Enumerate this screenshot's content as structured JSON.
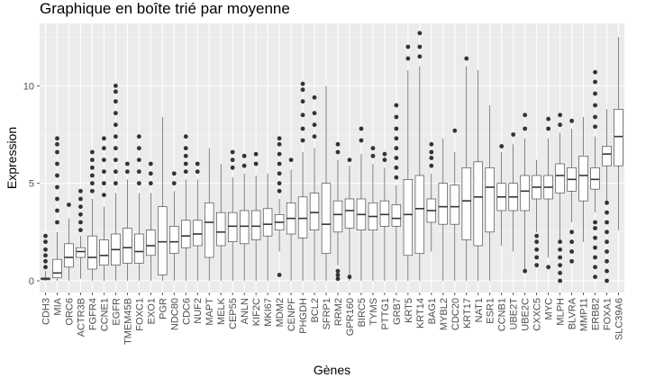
{
  "chart_data": {
    "type": "boxplot",
    "title": "Graphique en boîte trié par moyenne",
    "xlabel": "Gènes",
    "ylabel": "Expression",
    "ylim": [
      -0.6,
      13.2
    ],
    "yticks": [
      0,
      5,
      10
    ],
    "grid": true,
    "colors": {
      "panel": "#EBEBEB",
      "grid_major": "#FFFFFF",
      "box_fill": "#FFFFFF",
      "box_line": "#333333",
      "outlier": "#333333"
    },
    "categories": [
      "CDH3",
      "MIA",
      "ORC6",
      "ACTR3B",
      "FGFR4",
      "CCNE1",
      "EGFR",
      "TMEM45B",
      "FOXC1",
      "EXO1",
      "PGR",
      "NDC80",
      "CDC6",
      "NUF2",
      "MAPT",
      "MELK",
      "CEP55",
      "ANLN",
      "KIF2C",
      "MKI67",
      "MDM2",
      "CENPF",
      "PHGDH",
      "BCL2",
      "SFRP1",
      "RRM2",
      "GPR160",
      "BIRC5",
      "TYMS",
      "PTTG1",
      "GRB7",
      "KRT5",
      "KRT14",
      "BAG1",
      "MYBL2",
      "CDC20",
      "KRT17",
      "NAT1",
      "ESR1",
      "CCNB1",
      "UBE2T",
      "UBE2C",
      "CXXC5",
      "MYC",
      "MLPH",
      "BLVRA",
      "MMP11",
      "ERBB2",
      "FOXA1",
      "SLC39A6"
    ],
    "boxes": [
      {
        "min": 0.0,
        "q1": 0.05,
        "median": 0.1,
        "q3": 0.15,
        "max": 0.5,
        "outliers": [
          0.7,
          1.0,
          1.3,
          1.6,
          2.0,
          2.3
        ]
      },
      {
        "min": 0.0,
        "q1": 0.15,
        "median": 0.4,
        "q3": 1.1,
        "max": 2.5,
        "outliers": [
          3.0,
          3.6,
          4.2,
          4.8,
          5.4,
          6.0,
          6.6,
          7.0,
          7.3
        ]
      },
      {
        "min": 0.0,
        "q1": 0.7,
        "median": 1.2,
        "q3": 1.9,
        "max": 3.2,
        "outliers": [
          3.9
        ]
      },
      {
        "min": 0.1,
        "q1": 1.2,
        "median": 1.5,
        "q3": 1.7,
        "max": 2.3,
        "outliers": [
          2.6,
          3.0,
          3.4,
          3.8,
          4.2,
          4.6
        ]
      },
      {
        "min": 0.0,
        "q1": 0.6,
        "median": 1.2,
        "q3": 2.3,
        "max": 4.2,
        "outliers": [
          4.6,
          5.0,
          5.4,
          5.8,
          6.2,
          6.6
        ]
      },
      {
        "min": 0.0,
        "q1": 0.8,
        "median": 1.3,
        "q3": 2.1,
        "max": 3.8,
        "outliers": [
          4.4,
          5.0,
          5.6,
          6.2,
          6.8,
          7.3
        ]
      },
      {
        "min": 0.0,
        "q1": 0.8,
        "median": 1.6,
        "q3": 2.4,
        "max": 4.5,
        "outliers": [
          5.0,
          5.6,
          6.2,
          6.8,
          7.4,
          8.0,
          8.6,
          9.2,
          9.7,
          10.0
        ]
      },
      {
        "min": 0.0,
        "q1": 0.9,
        "median": 1.7,
        "q3": 2.7,
        "max": 5.2,
        "outliers": [
          5.6,
          6.0
        ]
      },
      {
        "min": 0.0,
        "q1": 0.9,
        "median": 1.5,
        "q3": 2.4,
        "max": 4.5,
        "outliers": [
          5.0,
          5.6,
          6.2,
          6.8,
          7.4
        ]
      },
      {
        "min": 0.0,
        "q1": 1.3,
        "median": 1.8,
        "q3": 2.6,
        "max": 4.5,
        "outliers": [
          5.0,
          5.5,
          6.0
        ]
      },
      {
        "min": 0.0,
        "q1": 0.3,
        "median": 2.0,
        "q3": 3.8,
        "max": 8.4,
        "outliers": []
      },
      {
        "min": 0.0,
        "q1": 1.4,
        "median": 2.0,
        "q3": 2.8,
        "max": 4.6,
        "outliers": [
          5.0,
          5.5
        ]
      },
      {
        "min": 0.0,
        "q1": 1.7,
        "median": 2.3,
        "q3": 3.1,
        "max": 5.2,
        "outliers": [
          5.6,
          6.0,
          6.4,
          6.8,
          7.4
        ]
      },
      {
        "min": 0.0,
        "q1": 1.8,
        "median": 2.4,
        "q3": 3.1,
        "max": 5.2,
        "outliers": [
          5.6,
          6.0
        ]
      },
      {
        "min": 0.0,
        "q1": 1.2,
        "median": 3.0,
        "q3": 4.0,
        "max": 6.8,
        "outliers": []
      },
      {
        "min": 0.0,
        "q1": 1.8,
        "median": 2.5,
        "q3": 3.5,
        "max": 6.0,
        "outliers": []
      },
      {
        "min": 0.0,
        "q1": 2.0,
        "median": 2.8,
        "q3": 3.5,
        "max": 5.3,
        "outliers": [
          5.8,
          6.2,
          6.6
        ]
      },
      {
        "min": 0.0,
        "q1": 1.9,
        "median": 2.8,
        "q3": 3.6,
        "max": 5.5,
        "outliers": [
          5.9,
          6.4
        ]
      },
      {
        "min": 0.0,
        "q1": 2.1,
        "median": 2.8,
        "q3": 3.6,
        "max": 5.4,
        "outliers": [
          6.0,
          6.5
        ]
      },
      {
        "min": 0.0,
        "q1": 2.3,
        "median": 2.9,
        "q3": 3.7,
        "max": 5.5,
        "outliers": []
      },
      {
        "min": 1.5,
        "q1": 2.6,
        "median": 3.0,
        "q3": 3.4,
        "max": 4.2,
        "outliers": [
          0.3,
          4.6,
          5.0,
          5.5,
          6.0,
          6.5,
          7.0,
          7.3
        ]
      },
      {
        "min": 0.0,
        "q1": 2.4,
        "median": 3.2,
        "q3": 4.0,
        "max": 5.7,
        "outliers": [
          6.2
        ]
      },
      {
        "min": 0.0,
        "q1": 2.2,
        "median": 3.2,
        "q3": 4.3,
        "max": 6.6,
        "outliers": [
          7.2,
          7.8,
          8.5,
          9.2,
          9.8,
          10.1
        ]
      },
      {
        "min": 0.0,
        "q1": 2.6,
        "median": 3.5,
        "q3": 4.5,
        "max": 6.8,
        "outliers": [
          7.4,
          8.0,
          8.6,
          9.4
        ]
      },
      {
        "min": 0.0,
        "q1": 1.4,
        "median": 2.9,
        "q3": 5.0,
        "max": 10.0,
        "outliers": []
      },
      {
        "min": 0.8,
        "q1": 2.5,
        "median": 3.4,
        "q3": 4.1,
        "max": 6.2,
        "outliers": [
          0.1,
          0.3,
          0.5,
          6.6,
          7.0
        ]
      },
      {
        "min": 0.0,
        "q1": 2.7,
        "median": 3.6,
        "q3": 4.2,
        "max": 5.9,
        "outliers": [
          0.2,
          6.2
        ]
      },
      {
        "min": 0.0,
        "q1": 2.6,
        "median": 3.4,
        "q3": 4.2,
        "max": 6.5,
        "outliers": [
          7.2,
          7.8
        ]
      },
      {
        "min": 0.0,
        "q1": 2.6,
        "median": 3.3,
        "q3": 4.0,
        "max": 6.0,
        "outliers": [
          6.4,
          6.8
        ]
      },
      {
        "min": 0.0,
        "q1": 2.8,
        "median": 3.4,
        "q3": 4.1,
        "max": 5.8,
        "outliers": [
          6.2,
          6.5
        ]
      },
      {
        "min": 0.0,
        "q1": 2.8,
        "median": 3.2,
        "q3": 3.9,
        "max": 4.9,
        "outliers": [
          5.3,
          5.8,
          6.3,
          6.8,
          7.3,
          7.8,
          8.4,
          9.0
        ]
      },
      {
        "min": 0.0,
        "q1": 1.3,
        "median": 3.4,
        "q3": 5.2,
        "max": 10.8,
        "outliers": [
          11.4,
          12.0
        ]
      },
      {
        "min": 0.0,
        "q1": 1.4,
        "median": 3.7,
        "q3": 5.4,
        "max": 11.0,
        "outliers": [
          11.5,
          12.0,
          12.7
        ]
      },
      {
        "min": 1.5,
        "q1": 3.0,
        "median": 3.6,
        "q3": 4.2,
        "max": 5.5,
        "outliers": [
          5.9,
          6.3,
          6.6,
          7.0
        ]
      },
      {
        "min": 0.0,
        "q1": 2.9,
        "median": 3.8,
        "q3": 5.0,
        "max": 7.3,
        "outliers": []
      },
      {
        "min": 0.0,
        "q1": 2.9,
        "median": 3.8,
        "q3": 4.9,
        "max": 6.6,
        "outliers": [
          7.7
        ]
      },
      {
        "min": 0.0,
        "q1": 2.1,
        "median": 4.1,
        "q3": 5.8,
        "max": 11.0,
        "outliers": [
          11.4
        ]
      },
      {
        "min": 0.0,
        "q1": 1.8,
        "median": 4.3,
        "q3": 6.1,
        "max": 10.8,
        "outliers": []
      },
      {
        "min": 0.0,
        "q1": 2.5,
        "median": 4.8,
        "q3": 5.8,
        "max": 9.0,
        "outliers": []
      },
      {
        "min": 1.8,
        "q1": 3.6,
        "median": 4.3,
        "q3": 5.0,
        "max": 6.6,
        "outliers": [
          6.9
        ]
      },
      {
        "min": 1.5,
        "q1": 3.6,
        "median": 4.3,
        "q3": 5.0,
        "max": 7.0,
        "outliers": [
          7.5
        ]
      },
      {
        "min": 0.6,
        "q1": 3.6,
        "median": 4.6,
        "q3": 5.4,
        "max": 7.3,
        "outliers": [
          0.5,
          7.8,
          8.5
        ]
      },
      {
        "min": 2.5,
        "q1": 4.2,
        "median": 4.8,
        "q3": 5.4,
        "max": 6.2,
        "outliers": [
          0.8,
          1.2,
          1.6,
          2.0,
          2.3
        ]
      },
      {
        "min": 1.2,
        "q1": 4.2,
        "median": 4.8,
        "q3": 5.4,
        "max": 7.3,
        "outliers": [
          0.7,
          7.8,
          8.3
        ]
      },
      {
        "min": 2.0,
        "q1": 4.5,
        "median": 5.4,
        "q3": 6.0,
        "max": 7.6,
        "outliers": [
          0.0,
          0.4,
          0.8,
          1.2,
          1.6,
          2.0,
          8.0,
          8.5
        ]
      },
      {
        "min": 3.0,
        "q1": 4.6,
        "median": 5.2,
        "q3": 5.8,
        "max": 7.8,
        "outliers": [
          1.0,
          1.5,
          2.0,
          2.5,
          8.2
        ]
      },
      {
        "min": 2.0,
        "q1": 4.1,
        "median": 5.4,
        "q3": 6.4,
        "max": 8.4,
        "outliers": []
      },
      {
        "min": 3.5,
        "q1": 4.7,
        "median": 5.2,
        "q3": 5.8,
        "max": 7.4,
        "outliers": [
          0.2,
          0.7,
          1.2,
          1.7,
          2.2,
          2.7,
          3.0,
          7.9,
          8.4,
          9.0,
          9.6,
          10.2,
          10.7
        ]
      },
      {
        "min": 4.0,
        "q1": 5.9,
        "median": 6.5,
        "q3": 6.9,
        "max": 8.8,
        "outliers": [
          0.0,
          0.5,
          1.0,
          1.5,
          2.0,
          2.5,
          3.0,
          3.5,
          4.0
        ]
      },
      {
        "min": 2.6,
        "q1": 5.9,
        "median": 7.4,
        "q3": 8.8,
        "max": 12.5,
        "outliers": []
      }
    ]
  }
}
